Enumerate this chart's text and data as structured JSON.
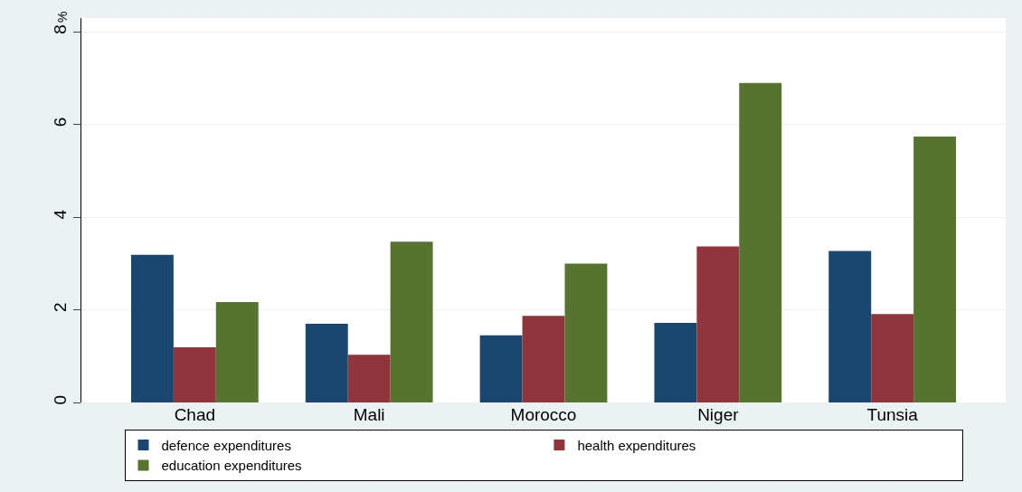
{
  "chart_data": {
    "type": "bar",
    "ylabel": "%",
    "categories": [
      "Chad",
      "Mali",
      "Morocco",
      "Niger",
      "Tunsia"
    ],
    "series": [
      {
        "name": "defence expenditures",
        "color": "#1a476f",
        "values": [
          3.19,
          1.7,
          1.45,
          1.72,
          3.27
        ]
      },
      {
        "name": "health expenditures",
        "color": "#90353b",
        "values": [
          1.19,
          1.03,
          1.87,
          3.37,
          1.91
        ]
      },
      {
        "name": "education expenditures",
        "color": "#55752f",
        "values": [
          2.17,
          3.47,
          3.0,
          6.9,
          5.74
        ]
      }
    ],
    "ylim": [
      0,
      8.3
    ],
    "yticks": [
      0,
      2,
      4,
      6,
      8
    ],
    "grid": "y",
    "legend": "bottom"
  }
}
